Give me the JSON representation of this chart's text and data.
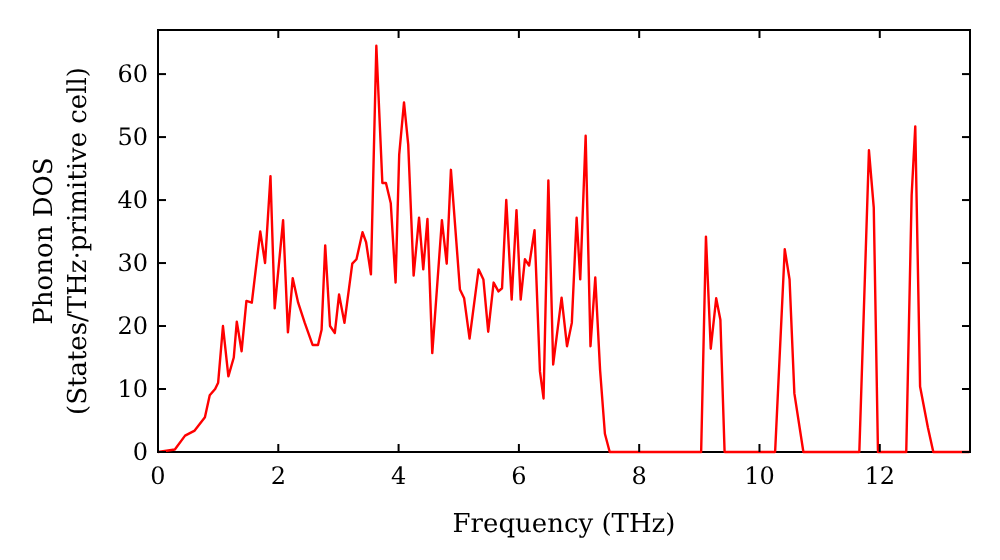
{
  "chart_data": {
    "type": "line",
    "xlabel": "Frequency (THz)",
    "ylabel": "Phonon DOS\n(States/THz·primitive cell)",
    "xlim": [
      0,
      13.5
    ],
    "ylim": [
      0,
      67
    ],
    "xticks": [
      0,
      2,
      4,
      6,
      8,
      10,
      12
    ],
    "yticks": [
      0,
      10,
      20,
      30,
      40,
      50,
      60
    ],
    "grid": false,
    "marker": "none",
    "line_style": "solid",
    "series": [
      {
        "color": "#ff0000",
        "x": [
          0,
          0.28,
          0.45,
          0.61,
          0.78,
          0.86,
          0.95,
          1.0,
          1.08,
          1.17,
          1.26,
          1.31,
          1.39,
          1.47,
          1.56,
          1.7,
          1.78,
          1.87,
          1.94,
          2.08,
          2.16,
          2.24,
          2.33,
          2.44,
          2.57,
          2.66,
          2.72,
          2.78,
          2.86,
          2.94,
          3.01,
          3.1,
          3.23,
          3.3,
          3.4,
          3.46,
          3.54,
          3.63,
          3.73,
          3.79,
          3.87,
          3.95,
          4.01,
          4.09,
          4.16,
          4.25,
          4.34,
          4.41,
          4.48,
          4.56,
          4.72,
          4.8,
          4.87,
          5.02,
          5.09,
          5.18,
          5.33,
          5.41,
          5.49,
          5.58,
          5.66,
          5.72,
          5.79,
          5.88,
          5.96,
          6.03,
          6.1,
          6.17,
          6.26,
          6.35,
          6.41,
          6.49,
          6.57,
          6.71,
          6.8,
          6.88,
          6.96,
          7.02,
          7.11,
          7.19,
          7.27,
          7.35,
          7.43,
          7.51,
          7.99,
          9.03,
          9.11,
          9.19,
          9.28,
          9.35,
          9.42,
          10.26,
          10.42,
          10.5,
          10.58,
          10.73,
          11.66,
          11.82,
          11.9,
          11.97,
          12.44,
          12.53,
          12.59,
          12.67,
          12.8,
          12.89,
          13.49
        ],
        "values": [
          0,
          0.4,
          2.6,
          3.4,
          5.5,
          9,
          10,
          11,
          20,
          12,
          15,
          20.7,
          16,
          24,
          23.7,
          35,
          30,
          43.8,
          22.8,
          36.8,
          19,
          27.6,
          23.7,
          20.5,
          17,
          17,
          19.4,
          32.8,
          20,
          18.9,
          25,
          20.5,
          29.9,
          30.6,
          34.9,
          33.3,
          28.2,
          64.5,
          42.7,
          42.7,
          39.5,
          26.9,
          47.2,
          55.5,
          48.8,
          28,
          37.2,
          29,
          37,
          15.7,
          36.8,
          29.9,
          44.8,
          25.8,
          24.4,
          18,
          29,
          27.4,
          19.1,
          26.9,
          25.5,
          26,
          40,
          24.2,
          38.4,
          24.2,
          30.6,
          29.6,
          35.2,
          12.8,
          8.5,
          43.1,
          13.9,
          24.5,
          16.8,
          20.5,
          37.2,
          27.4,
          50.2,
          16.8,
          27.7,
          13,
          2.9,
          0,
          0,
          0,
          34.2,
          16.4,
          24.4,
          21,
          0,
          0,
          32.2,
          27.4,
          9.3,
          0,
          0,
          47.9,
          38.8,
          0,
          0,
          40.8,
          51.7,
          10.4,
          3.9,
          0,
          0
        ]
      }
    ]
  }
}
